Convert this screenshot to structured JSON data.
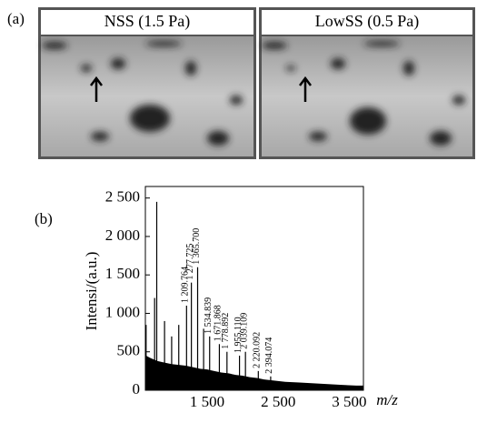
{
  "panel_a": {
    "label": "(a)",
    "images": [
      {
        "title": "NSS (1.5 Pa)"
      },
      {
        "title": "LowSS (0.5 Pa)"
      }
    ]
  },
  "panel_b": {
    "label": "(b)"
  },
  "chart_data": {
    "type": "spectrum",
    "xlabel": "m/z",
    "ylabel": "Intensi/(a.u.)",
    "xlim": [
      630,
      3700
    ],
    "ylim": [
      0,
      2650
    ],
    "xticks": [
      {
        "value": 1500,
        "label": "1 500"
      },
      {
        "value": 2500,
        "label": "2 500"
      },
      {
        "value": 3500,
        "label": "3 500"
      }
    ],
    "yticks": [
      0,
      500,
      {
        "value": 1000,
        "label": "1 000"
      },
      {
        "value": 1500,
        "label": "1 500"
      },
      {
        "value": 2000,
        "label": "2 000"
      },
      {
        "value": 2500,
        "label": "2 500"
      }
    ],
    "x": [
      640,
      760,
      790,
      900,
      1000,
      1100,
      1209.764,
      1277.725,
      1365.7,
      1450,
      1534.839,
      1671.868,
      1778.892,
      1955.11,
      2039.109,
      2220.092,
      2394.074,
      2600
    ],
    "values": [
      850,
      1200,
      2450,
      900,
      700,
      850,
      1100,
      1400,
      1600,
      800,
      700,
      600,
      500,
      450,
      500,
      250,
      180,
      100
    ],
    "peak_labels": [
      null,
      null,
      null,
      null,
      null,
      null,
      "1 209.764",
      "1 277.725",
      "1 365.700",
      null,
      "1 534.839",
      "1 671.868",
      "1 778.892",
      "1 955.110",
      "2 039.109",
      "2 220.092",
      "2 394.074",
      null
    ],
    "noise_x": [
      640,
      700,
      800,
      900,
      1000,
      1100,
      1200,
      1300,
      1400,
      1500,
      1600,
      1700,
      1800,
      1900,
      2000,
      2100,
      2200,
      2300,
      2400,
      2600,
      2800,
      3000,
      3200,
      3400,
      3600,
      3700
    ],
    "noise": [
      450,
      420,
      380,
      360,
      340,
      330,
      320,
      300,
      280,
      270,
      250,
      230,
      220,
      200,
      190,
      170,
      160,
      140,
      130,
      110,
      100,
      90,
      80,
      70,
      60,
      60
    ],
    "color": "#000000"
  }
}
